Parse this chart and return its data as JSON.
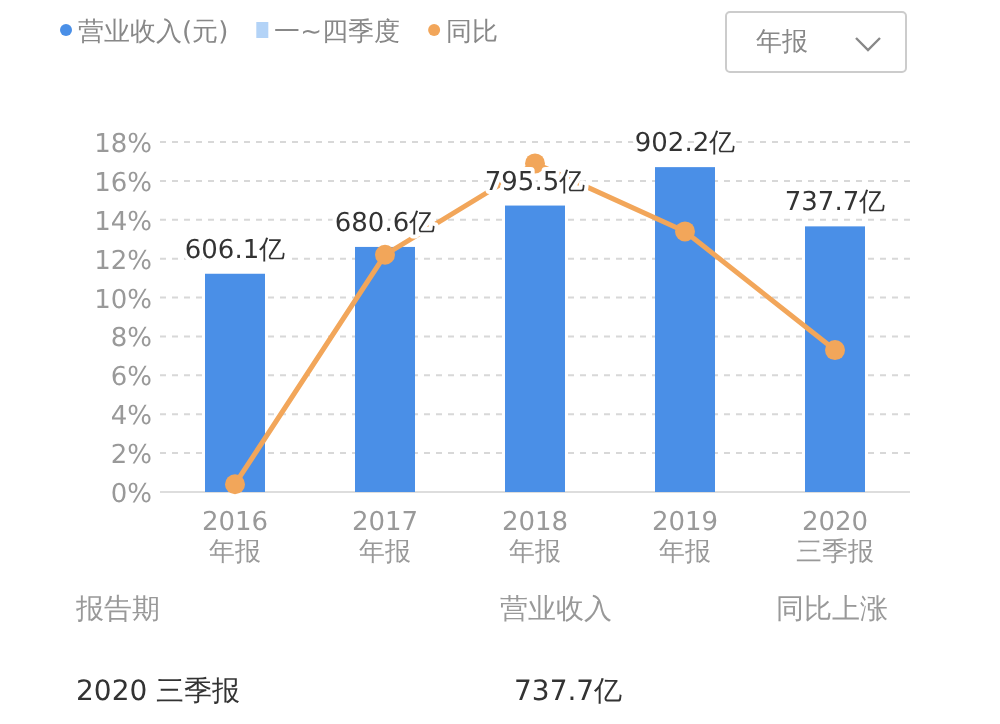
{
  "chart_data": {
    "type": "bar",
    "categories": [
      "2016\n年报",
      "2017\n年报",
      "2018\n年报",
      "2019\n年报",
      "2020\n三季报"
    ],
    "series": [
      {
        "name": "营业收入(元)",
        "axis": "y2",
        "color": "#4a8fe7",
        "values": [
          606.1,
          680.6,
          795.5,
          902.2,
          737.7
        ],
        "value_labels": [
          "606.1亿",
          "680.6亿",
          "795.5亿",
          "902.2亿",
          "737.7亿"
        ]
      },
      {
        "name": "一~四季度",
        "axis": "y2",
        "color": "#b3d3f7",
        "values": [
          null,
          null,
          null,
          null,
          null
        ]
      },
      {
        "name": "同比",
        "type": "line",
        "color": "#f2a65a",
        "values": [
          0.4,
          12.2,
          16.9,
          13.4,
          7.3
        ]
      }
    ],
    "ylim": [
      0,
      18
    ],
    "yticks": [
      {
        "value": 0,
        "label": "0%"
      },
      {
        "value": 2,
        "label": "2%"
      },
      {
        "value": 4,
        "label": "4%"
      },
      {
        "value": 6,
        "label": "6%"
      },
      {
        "value": 8,
        "label": "8%"
      },
      {
        "value": 10,
        "label": "10%"
      },
      {
        "value": 12,
        "label": "12%"
      },
      {
        "value": 14,
        "label": "14%"
      },
      {
        "value": 16,
        "label": "16%"
      },
      {
        "value": 18,
        "label": "18%"
      }
    ],
    "y2lim": [
      0,
      972
    ],
    "grid": "y",
    "legend": "top left",
    "marker": "circle",
    "annotations": [
      "年报",
      "报告期",
      "营业收入",
      "同比上涨",
      "2020 三季报",
      "737.7亿"
    ]
  }
}
